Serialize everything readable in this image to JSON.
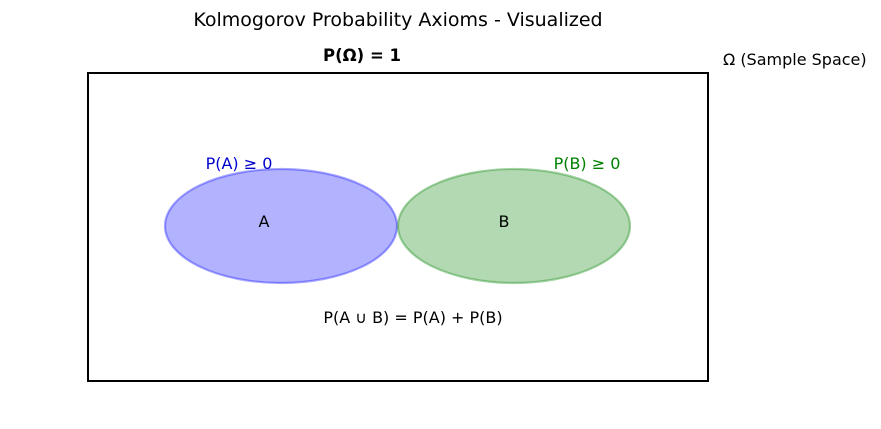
{
  "title": "Kolmogorov Probability Axioms - Visualized",
  "normalization_label": "P(Ω) = 1",
  "sample_space_label": "Ω (Sample Space)",
  "events": [
    {
      "name": "A",
      "axiom_label": "P(A) ≥ 0",
      "color": "#0000ff",
      "label_color": "#0000cc"
    },
    {
      "name": "B",
      "axiom_label": "P(B) ≥ 0",
      "color": "#008000",
      "label_color": "#008000"
    }
  ],
  "additivity_label": "P(A ∪ B) = P(A) + P(B)",
  "colors": {
    "border": "#000000",
    "text": "#000000",
    "event_fill_opacity": 0.3,
    "event_stroke_opacity": 0.35
  }
}
